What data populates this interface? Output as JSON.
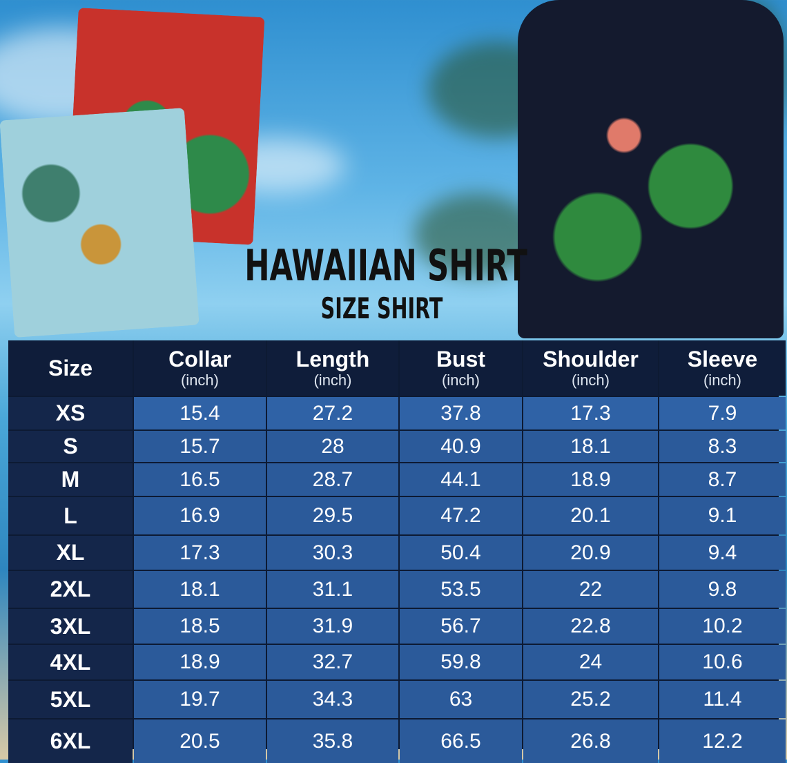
{
  "title": "HAWAIIAN SHIRT",
  "subtitle": "SIZE SHIRT",
  "colors": {
    "header_bg": "#0f1d3a",
    "cell_bg": "#2b5a9a",
    "size_bg": "#14264a",
    "text": "#ffffff"
  },
  "chart_data": {
    "type": "table",
    "columns": [
      {
        "label": "Size",
        "unit": ""
      },
      {
        "label": "Collar",
        "unit": "(inch)"
      },
      {
        "label": "Length",
        "unit": "(inch)"
      },
      {
        "label": "Bust",
        "unit": "(inch)"
      },
      {
        "label": "Shoulder",
        "unit": "(inch)"
      },
      {
        "label": "Sleeve",
        "unit": "(inch)"
      }
    ],
    "rows": [
      [
        "XS",
        "15.4",
        "27.2",
        "37.8",
        "17.3",
        "7.9"
      ],
      [
        "S",
        "15.7",
        "28",
        "40.9",
        "18.1",
        "8.3"
      ],
      [
        "M",
        "16.5",
        "28.7",
        "44.1",
        "18.9",
        "8.7"
      ],
      [
        "L",
        "16.9",
        "29.5",
        "47.2",
        "20.1",
        "9.1"
      ],
      [
        "XL",
        "17.3",
        "30.3",
        "50.4",
        "20.9",
        "9.4"
      ],
      [
        "2XL",
        "18.1",
        "31.1",
        "53.5",
        "22",
        "9.8"
      ],
      [
        "3XL",
        "18.5",
        "31.9",
        "56.7",
        "22.8",
        "10.2"
      ],
      [
        "4XL",
        "18.9",
        "32.7",
        "59.8",
        "24",
        "10.6"
      ],
      [
        "5XL",
        "19.7",
        "34.3",
        "63",
        "25.2",
        "11.4"
      ],
      [
        "6XL",
        "20.5",
        "35.8",
        "66.5",
        "26.8",
        "12.2"
      ]
    ]
  }
}
